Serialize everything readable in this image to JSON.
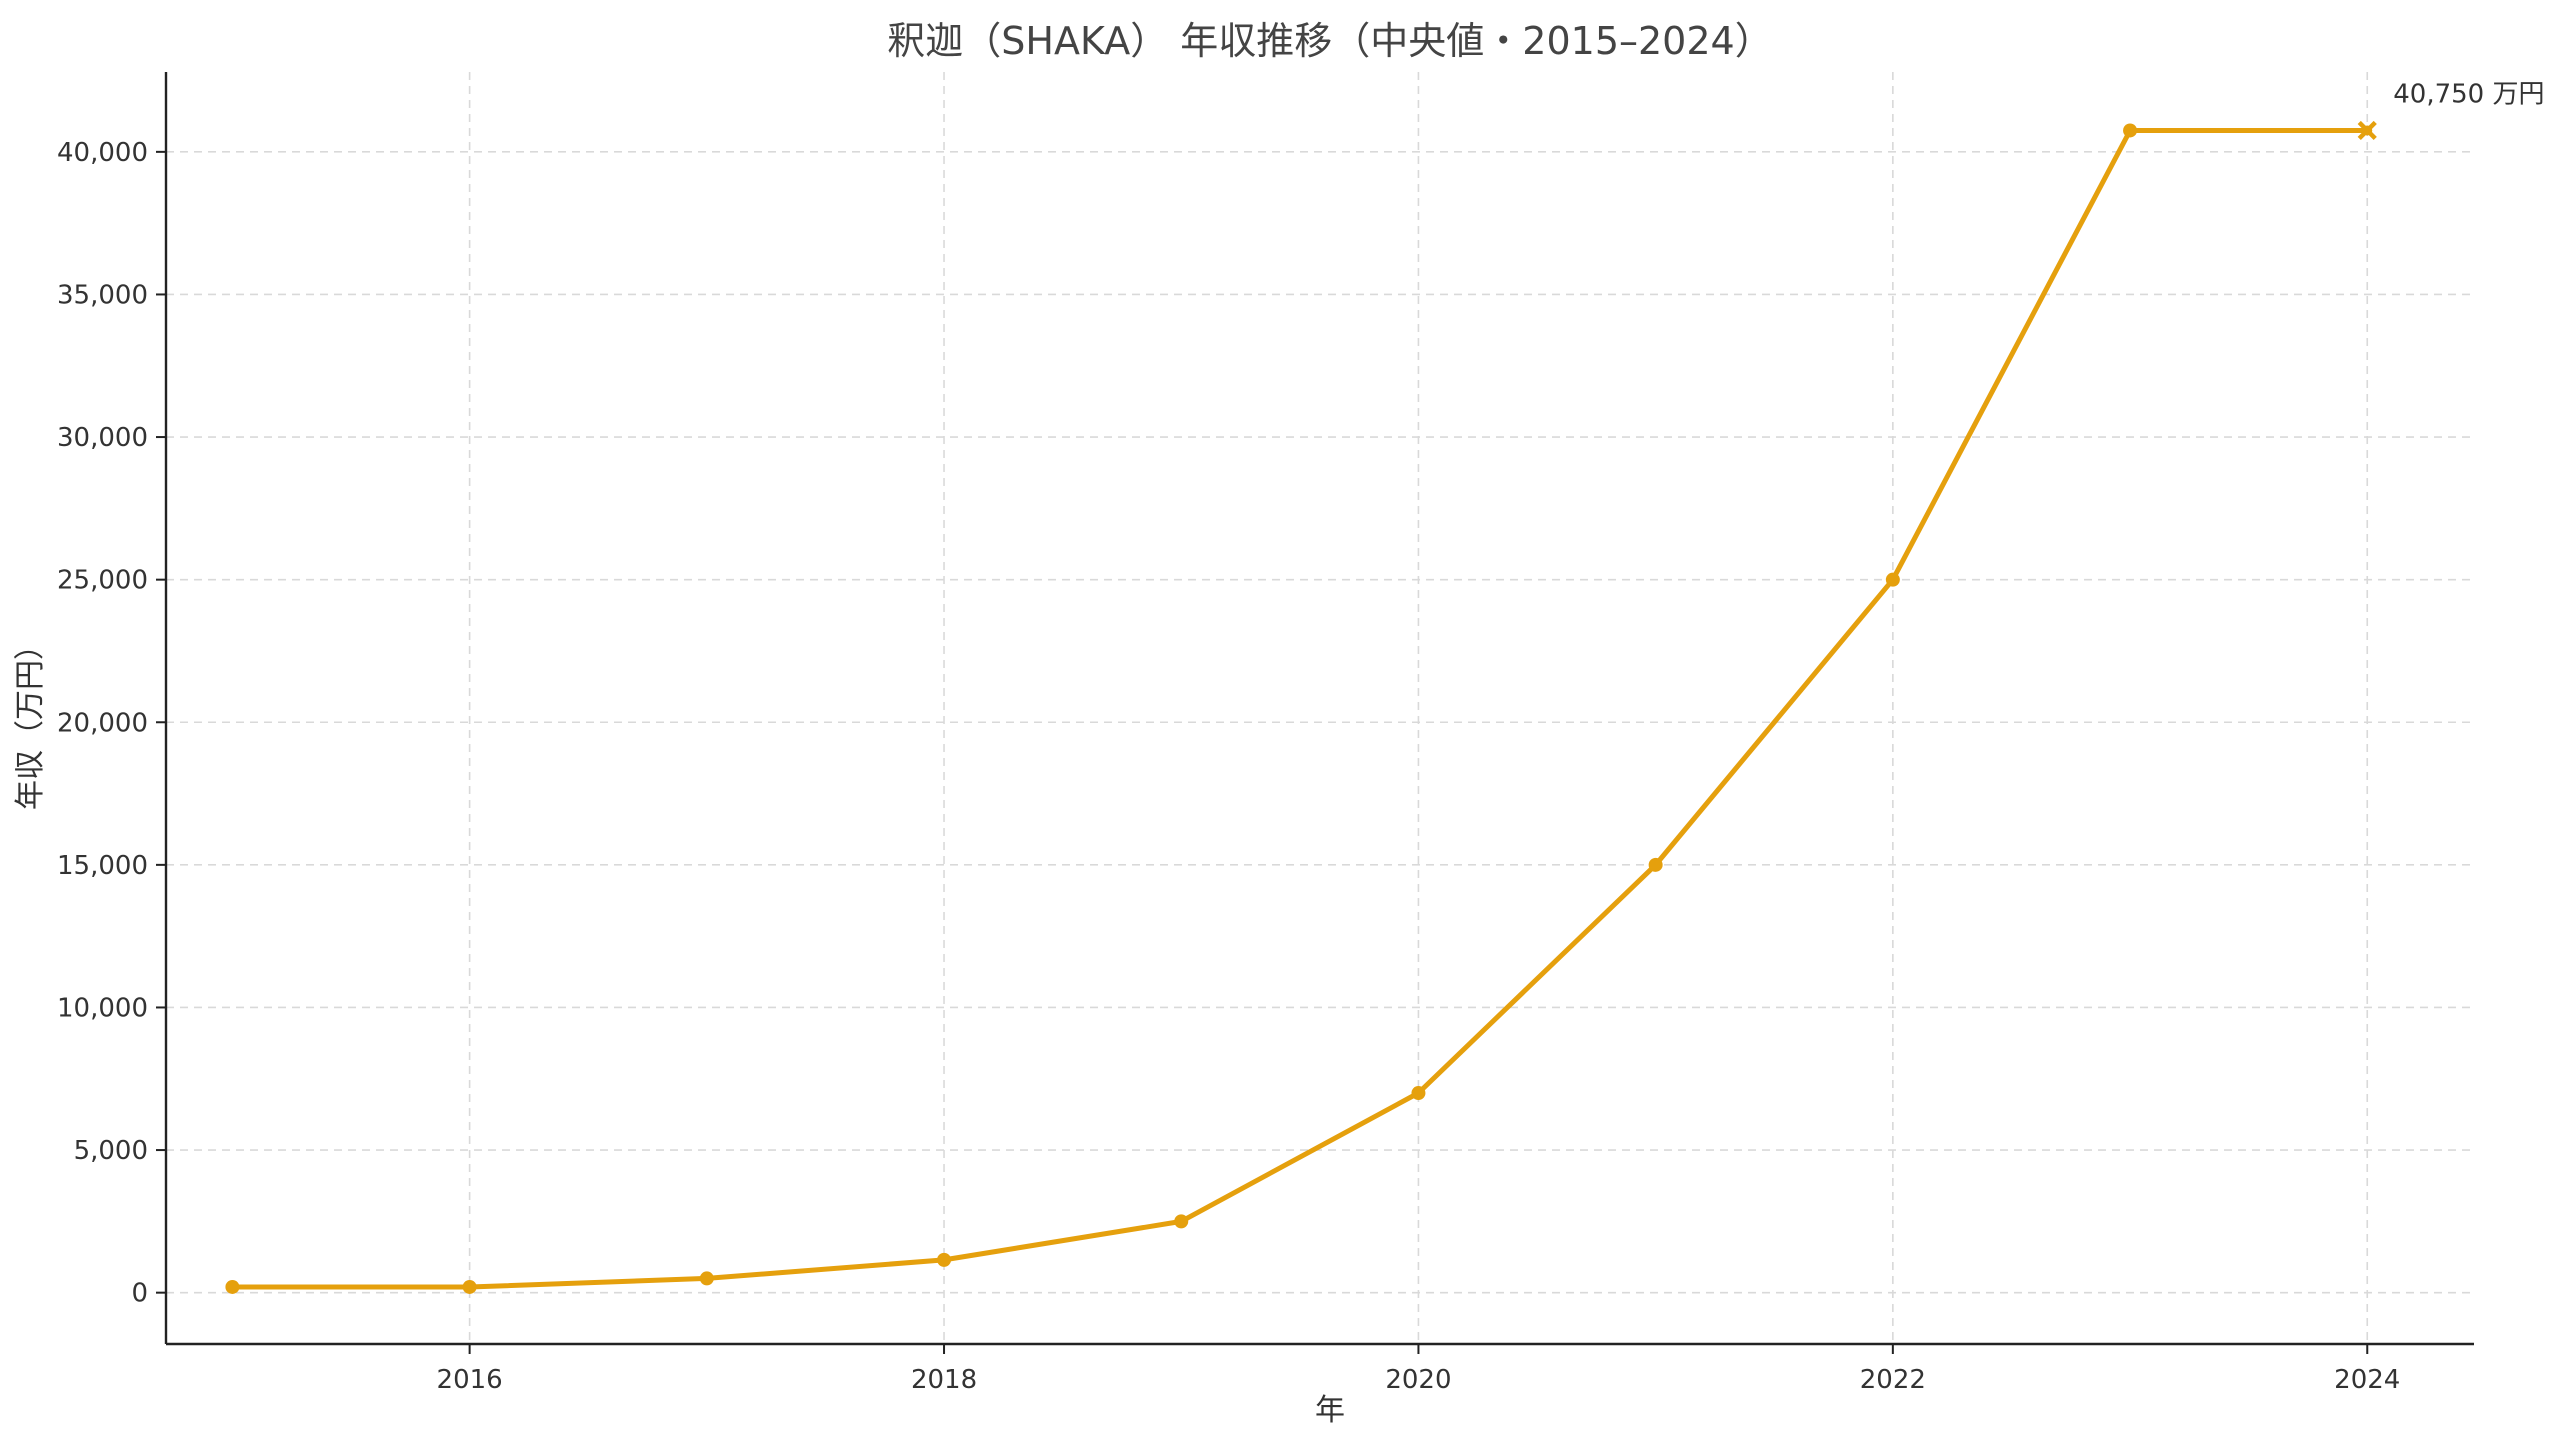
{
  "chart_data": {
    "type": "line",
    "title": "釈迦（SHAKA） 年収推移（中央値・2015–2024）",
    "xlabel": "年",
    "ylabel": "年収（万円）",
    "x": [
      2015,
      2016,
      2017,
      2018,
      2019,
      2020,
      2021,
      2022,
      2023,
      2024
    ],
    "series": [
      {
        "values": [
          200,
          200,
          500,
          1150,
          2500,
          7000,
          15000,
          25000,
          40750,
          40750
        ],
        "color": "#E5A00D"
      }
    ],
    "xlim": [
      2014.72,
      2024.45
    ],
    "ylim": [
      -1800,
      42800
    ],
    "x_ticks": [
      2016,
      2018,
      2020,
      2022,
      2024
    ],
    "x_tick_labels": [
      "2016",
      "2018",
      "2020",
      "2022",
      "2024"
    ],
    "y_ticks": [
      0,
      5000,
      10000,
      15000,
      20000,
      25000,
      30000,
      35000,
      40000
    ],
    "y_tick_labels": [
      "0",
      "5,000",
      "10,000",
      "15,000",
      "20,000",
      "25,000",
      "30,000",
      "35,000",
      "40,000"
    ],
    "grid": true,
    "legend": "none",
    "last_point_marker": "x",
    "annotation": {
      "text": "40,750 万円",
      "x": 2024,
      "y": 40750
    }
  }
}
